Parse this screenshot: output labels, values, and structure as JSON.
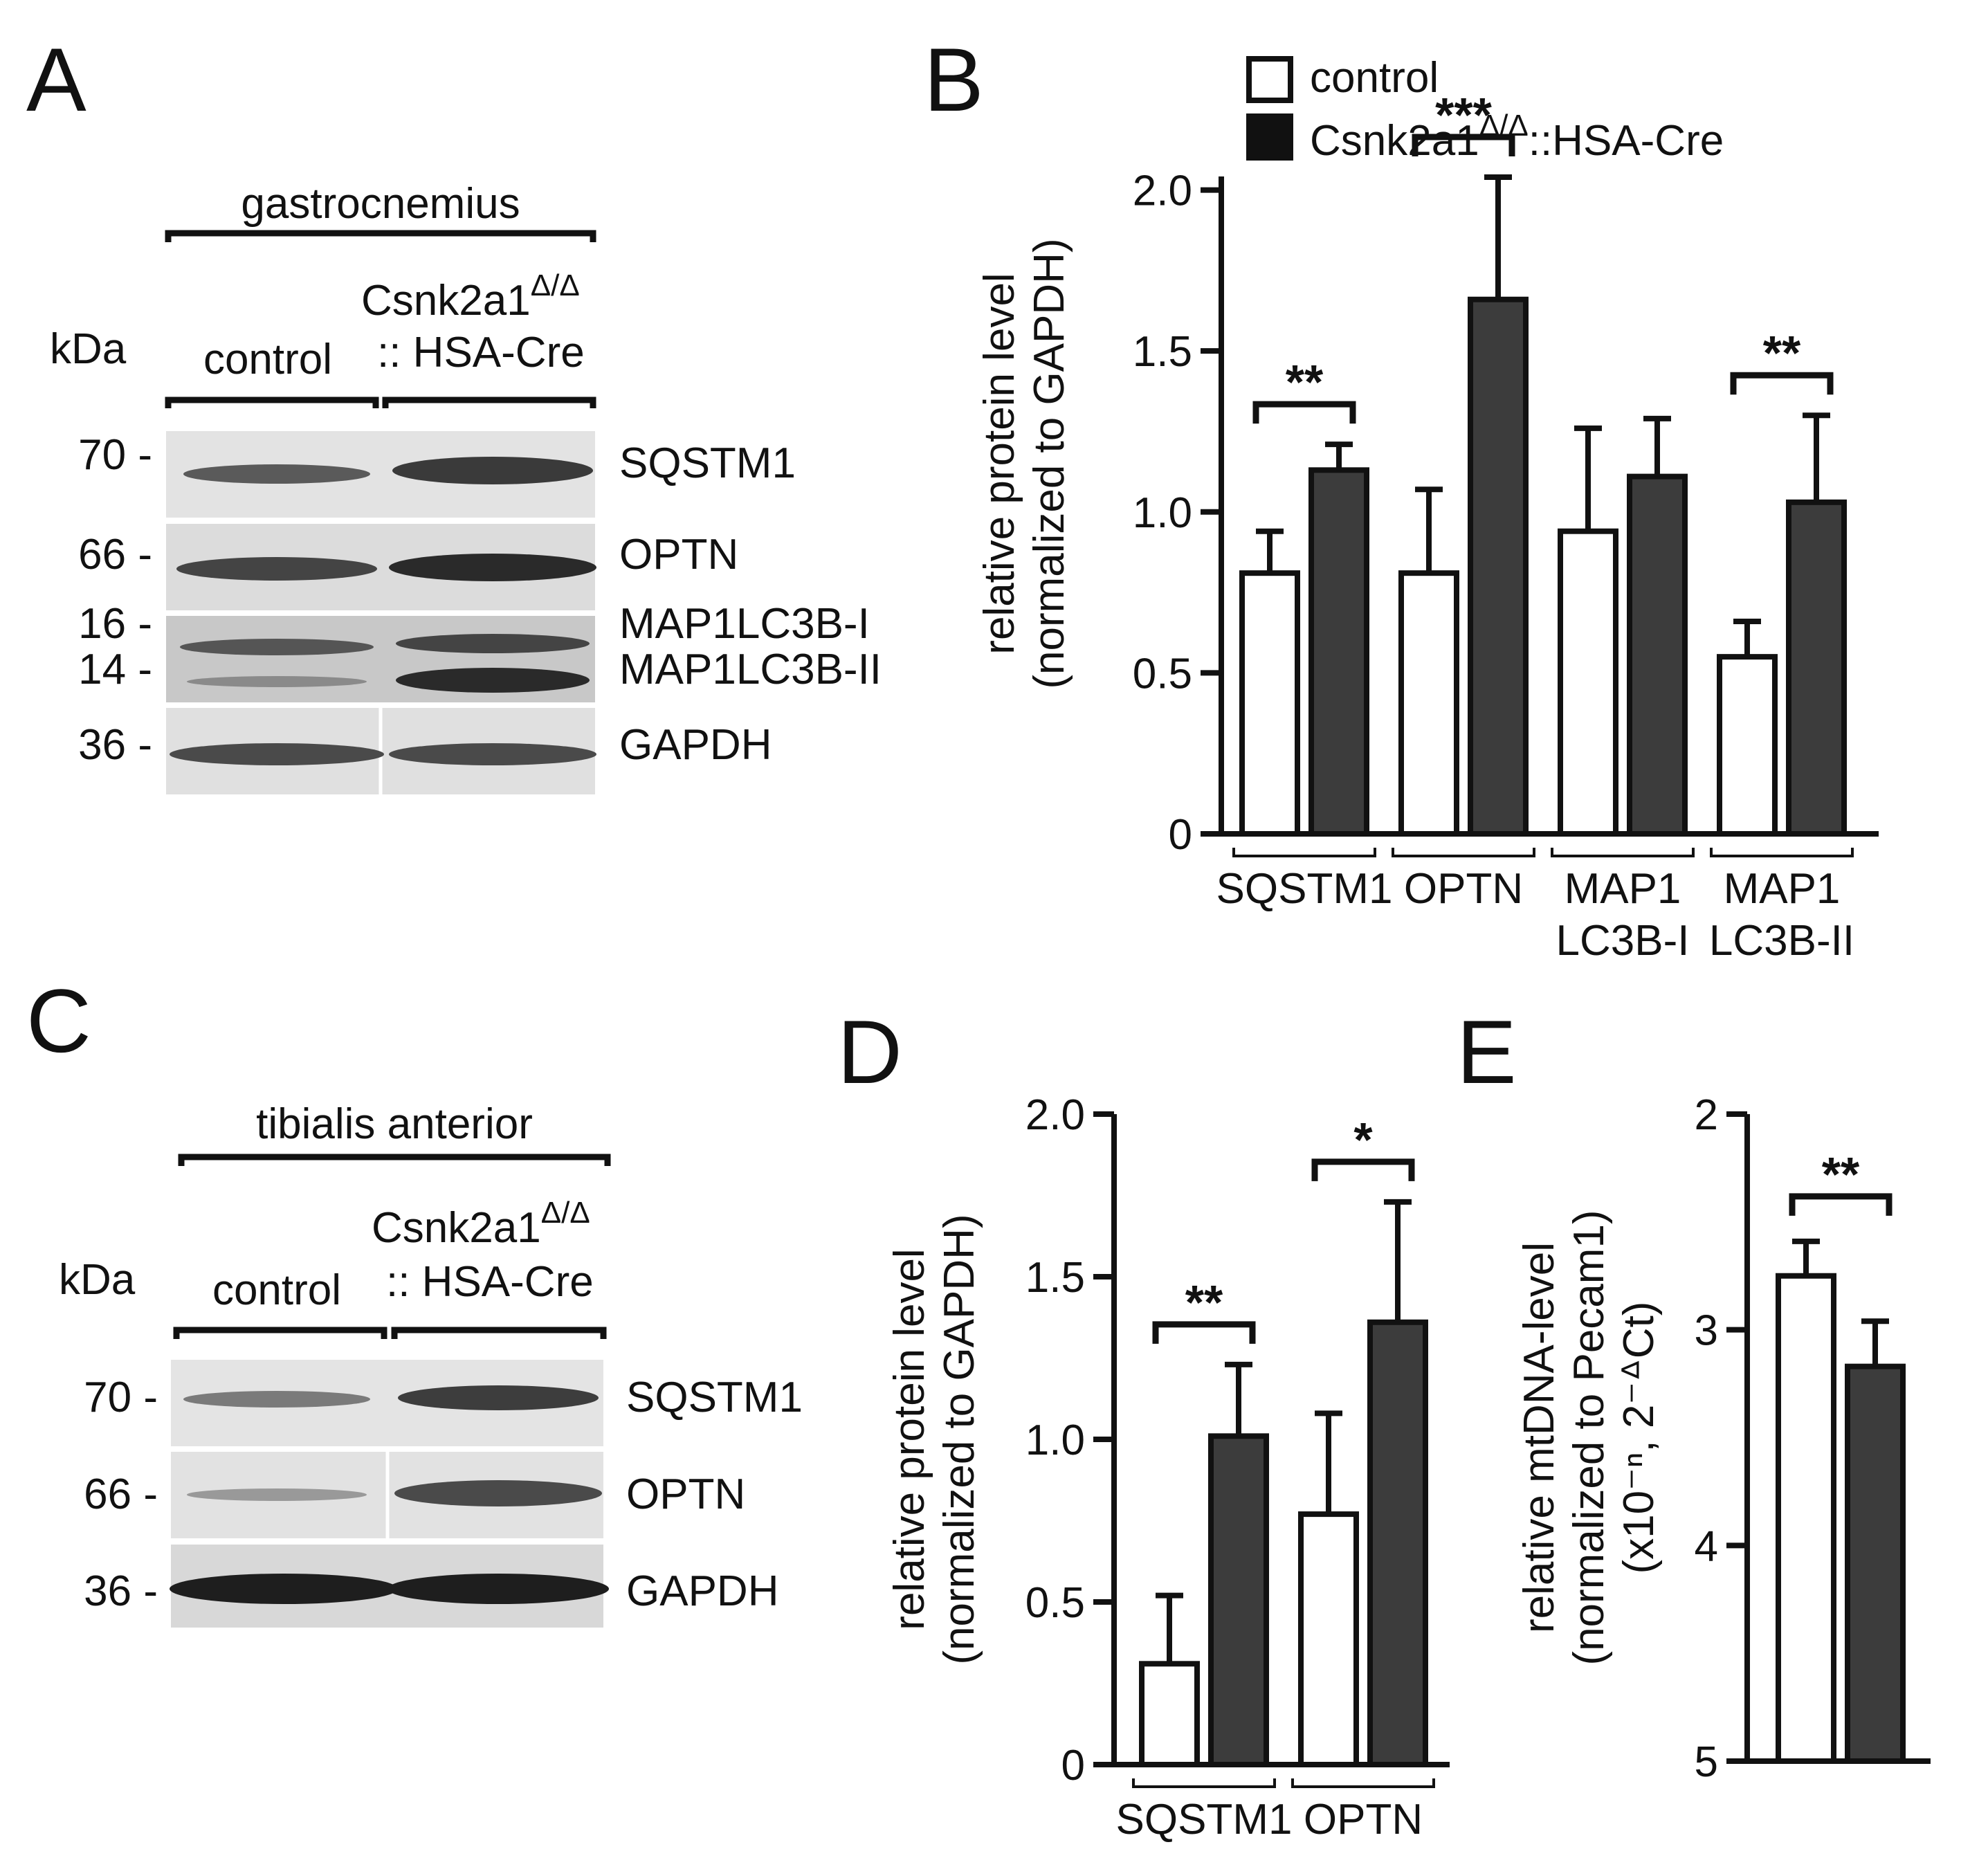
{
  "legend": {
    "items": [
      {
        "label": "control",
        "color": "#ffffff"
      },
      {
        "label": "Csnk2a1",
        "sup": "Δ/Δ",
        "suffix": "::HSA-Cre",
        "color": "#3c3c3c"
      }
    ]
  },
  "panel_labels": {
    "a": "A",
    "b": "B",
    "c": "C",
    "d": "D",
    "e": "E"
  },
  "blots": {
    "a": {
      "tissue": "gastrocnemius",
      "kda_label": "kDa",
      "col_control": "control",
      "col_ko_line1": "Csnk2a1",
      "col_ko_sup": "Δ/Δ",
      "col_ko_line2": ":: HSA-Cre",
      "markers": [
        "70 -",
        "66 -",
        "16 -",
        "14 -",
        "36 -"
      ],
      "proteins": [
        "SQSTM1",
        "OPTN",
        "MAP1LC3B-I",
        "MAP1LC3B-II",
        "GAPDH"
      ]
    },
    "c": {
      "tissue": "tibialis anterior",
      "kda_label": "kDa",
      "col_control": "control",
      "col_ko_line1": "Csnk2a1",
      "col_ko_sup": "Δ/Δ",
      "col_ko_line2": ":: HSA-Cre",
      "markers": [
        "70 -",
        "66 -",
        "36 -"
      ],
      "proteins": [
        "SQSTM1",
        "OPTN",
        "GAPDH"
      ]
    }
  },
  "chart_data": [
    {
      "panel": "B",
      "type": "bar",
      "ylabel_line1": "relative protein level",
      "ylabel_line2": "(normalized to GAPDH)",
      "ylim": [
        0,
        2.3
      ],
      "yticks": [
        "0",
        "0.5",
        "1.0",
        "1.5",
        "2.0"
      ],
      "categories": [
        "SQSTM1",
        "OPTN",
        "MAP1 LC3B-I",
        "MAP1 LC3B-II"
      ],
      "category_lines": [
        [
          "SQSTM1"
        ],
        [
          "OPTN"
        ],
        [
          "MAP1",
          "LC3B-I"
        ],
        [
          "MAP1",
          "LC3B-II"
        ]
      ],
      "series": [
        {
          "name": "control",
          "values": [
            0.81,
            0.81,
            0.94,
            0.55
          ],
          "errors": [
            0.13,
            0.26,
            0.32,
            0.11
          ]
        },
        {
          "name": "Csnk2a1Δ/Δ::HSA-Cre",
          "values": [
            1.13,
            1.66,
            1.11,
            1.03
          ],
          "errors": [
            0.08,
            0.38,
            0.18,
            0.27
          ]
        }
      ],
      "significance": [
        "**",
        "***",
        "",
        "**"
      ]
    },
    {
      "panel": "D",
      "type": "bar",
      "ylabel_line1": "relative protein level",
      "ylabel_line2": "(normalized to GAPDH)",
      "ylim": [
        0,
        2.0
      ],
      "yticks": [
        "0",
        "0.5",
        "1.0",
        "1.5",
        "2.0"
      ],
      "categories": [
        "SQSTM1",
        "OPTN"
      ],
      "category_lines": [
        [
          "SQSTM1"
        ],
        [
          "OPTN"
        ]
      ],
      "series": [
        {
          "name": "control",
          "values": [
            0.31,
            0.77
          ],
          "errors": [
            0.21,
            0.31
          ]
        },
        {
          "name": "Csnk2a1Δ/Δ::HSA-Cre",
          "values": [
            1.01,
            1.36
          ],
          "errors": [
            0.22,
            0.37
          ]
        }
      ],
      "significance": [
        "**",
        "*"
      ]
    },
    {
      "panel": "E",
      "type": "bar",
      "ylabel_line1": "relative mtDNA-level",
      "ylabel_line2": "(normalized to Pecam1)",
      "ylabel_line3": "(x10⁻ⁿ, 2⁻ᐞCt)",
      "ylim": [
        5,
        2
      ],
      "y_inverted": true,
      "yticks": [
        "2",
        "3",
        "4",
        "5"
      ],
      "categories": [
        ""
      ],
      "series": [
        {
          "name": "control",
          "values": [
            2.75
          ],
          "errors": [
            0.16
          ]
        },
        {
          "name": "Csnk2a1Δ/Δ::HSA-Cre",
          "values": [
            3.17
          ],
          "errors": [
            0.21
          ]
        }
      ],
      "significance": [
        "**"
      ]
    }
  ]
}
